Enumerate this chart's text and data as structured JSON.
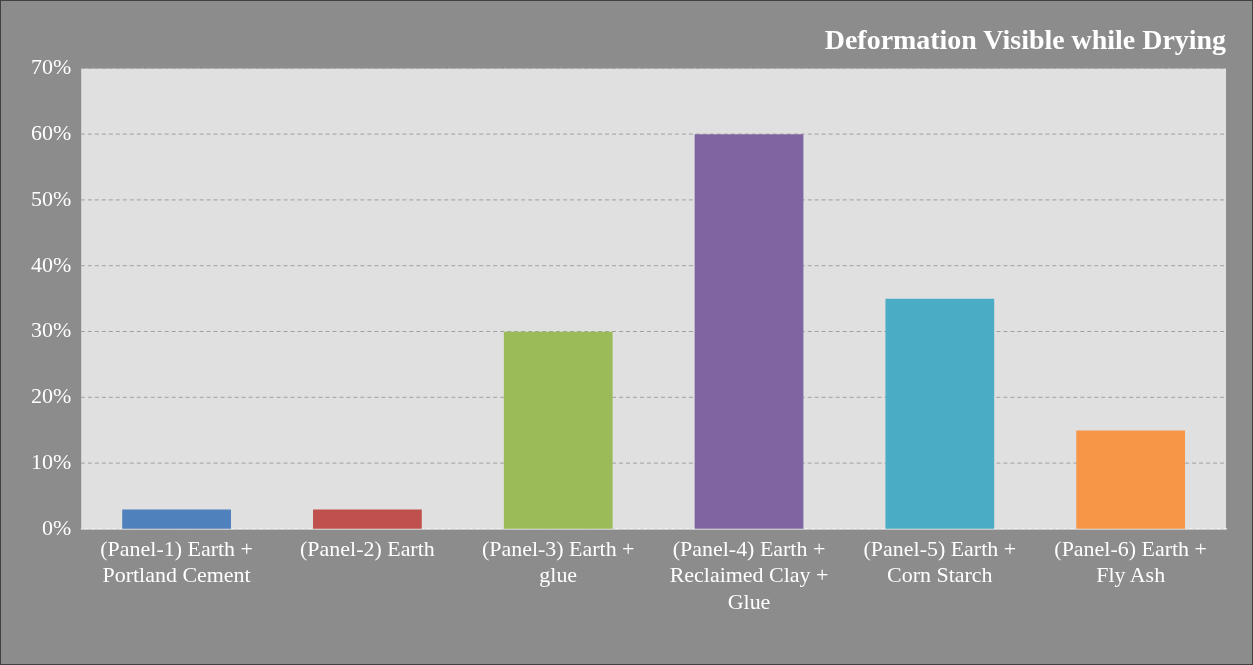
{
  "chart_data": {
    "type": "bar",
    "title": "Deformation Visible while Drying",
    "categories": [
      "(Panel-1) Earth + Portland Cement",
      "(Panel-2) Earth",
      "(Panel-3) Earth + glue",
      "(Panel-4) Earth + Reclaimed Clay + Glue",
      "(Panel-5) Earth + Corn Starch",
      "(Panel-6) Earth + Fly Ash"
    ],
    "values": [
      3,
      3,
      30,
      60,
      35,
      15
    ],
    "colors": [
      "#4f81bd",
      "#c0504d",
      "#9bbb59",
      "#8064a2",
      "#4bacc6",
      "#f79646"
    ],
    "ylim": [
      0,
      70
    ],
    "yticks": [
      {
        "value": 0,
        "label": "0%"
      },
      {
        "value": 10,
        "label": "10%"
      },
      {
        "value": 20,
        "label": "20%"
      },
      {
        "value": 30,
        "label": "30%"
      },
      {
        "value": 40,
        "label": "40%"
      },
      {
        "value": 50,
        "label": "50%"
      },
      {
        "value": 60,
        "label": "60%"
      },
      {
        "value": 70,
        "label": "70%"
      }
    ],
    "grid": "y",
    "legend": false
  }
}
